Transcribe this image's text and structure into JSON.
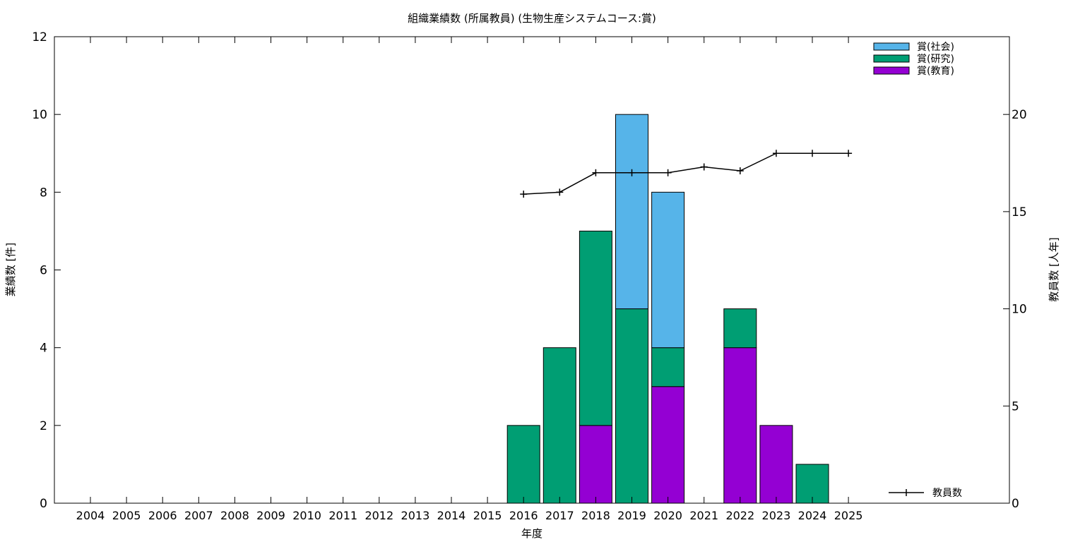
{
  "chart_data": {
    "type": "bar",
    "title": "組織業績数 (所属教員) (生物生産システムコース:賞)",
    "xlabel": "年度",
    "ylabel": "業績数 [件]",
    "y2label": "教員数 [人年]",
    "categories": [
      "2004",
      "2005",
      "2006",
      "2007",
      "2008",
      "2009",
      "2010",
      "2011",
      "2012",
      "2013",
      "2014",
      "2015",
      "2016",
      "2017",
      "2018",
      "2019",
      "2020",
      "2021",
      "2022",
      "2023",
      "2024",
      "2025"
    ],
    "ylim": [
      0,
      12
    ],
    "y2lim": [
      0,
      24
    ],
    "yticks": [
      0,
      2,
      4,
      6,
      8,
      10,
      12
    ],
    "y2ticks": [
      0,
      5,
      10,
      15,
      20
    ],
    "stacked": true,
    "series": [
      {
        "name": "賞(教育)",
        "color": "#9400d3",
        "values": [
          0,
          0,
          0,
          0,
          0,
          0,
          0,
          0,
          0,
          0,
          0,
          0,
          0,
          0,
          2,
          0,
          3,
          0,
          4,
          2,
          0,
          0
        ]
      },
      {
        "name": "賞(研究)",
        "color": "#009e73",
        "values": [
          0,
          0,
          0,
          0,
          0,
          0,
          0,
          0,
          0,
          0,
          0,
          0,
          2,
          4,
          5,
          5,
          1,
          0,
          1,
          0,
          1,
          0
        ]
      },
      {
        "name": "賞(社会)",
        "color": "#56b4e9",
        "values": [
          0,
          0,
          0,
          0,
          0,
          0,
          0,
          0,
          0,
          0,
          0,
          0,
          0,
          0,
          0,
          5,
          4,
          0,
          0,
          0,
          0,
          0
        ]
      }
    ],
    "line_series": {
      "name": "教員数",
      "axis": "right",
      "color": "#000000",
      "points": [
        {
          "x": "2016",
          "y": 15.9
        },
        {
          "x": "2017",
          "y": 16.0
        },
        {
          "x": "2018",
          "y": 17.0
        },
        {
          "x": "2019",
          "y": 17.0
        },
        {
          "x": "2020",
          "y": 17.0
        },
        {
          "x": "2021",
          "y": 17.3
        },
        {
          "x": "2022",
          "y": 17.1
        },
        {
          "x": "2023",
          "y": 18.0
        },
        {
          "x": "2024",
          "y": 18.0
        },
        {
          "x": "2025",
          "y": 18.0
        }
      ]
    },
    "legend_placement": "top-right",
    "line_legend_placement": "bottom-right",
    "grid": false
  }
}
